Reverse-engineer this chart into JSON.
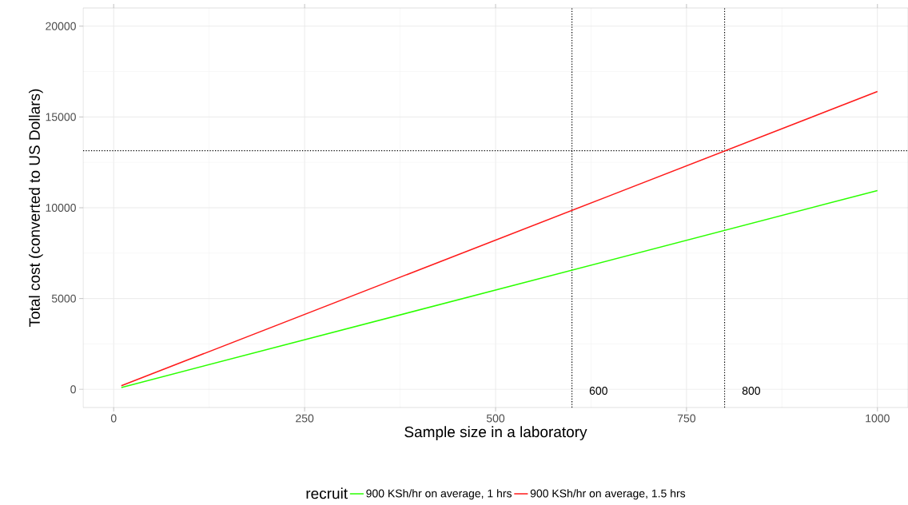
{
  "chart_data": {
    "type": "line",
    "xlabel": "Sample size in a laboratory",
    "ylabel": "Total cost (converted to US Dollars)",
    "legend_title": "recruit",
    "series": [
      {
        "name": "900 KSh/hr on average, 1 hrs",
        "color": "#2bff00",
        "values": [
          100,
          10950
        ]
      },
      {
        "name": "900 KSh/hr on average, 1.5 hrs",
        "color": "#ff1a1a",
        "values": [
          200,
          16400
        ]
      }
    ],
    "x": [
      10,
      1000
    ],
    "xlim": [
      -40,
      1040
    ],
    "ylim": [
      -1000,
      21000
    ],
    "xticks": [
      0,
      250,
      500,
      750,
      1000
    ],
    "yticks": [
      0,
      5000,
      10000,
      15000,
      20000
    ],
    "ref_lines": [
      {
        "axis": "x",
        "value": 600,
        "label": "600",
        "line_style": "dotted"
      },
      {
        "axis": "x",
        "value": 800,
        "label": "800",
        "line_style": "dotted"
      },
      {
        "axis": "y",
        "value": 13140,
        "line_style": "dotted"
      }
    ],
    "grid": true,
    "legend": "bottom",
    "marker": "none",
    "line_style": "solid"
  }
}
